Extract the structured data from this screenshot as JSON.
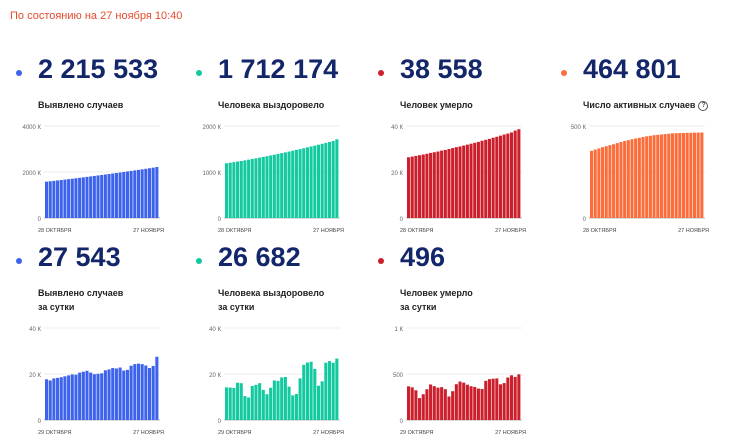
{
  "header": {
    "status": "По состоянию на 27 ноября 10:40"
  },
  "colors": {
    "blue": "#3d63ec",
    "teal": "#13c9a0",
    "red": "#cc1f2b",
    "orange": "#fb6d3b",
    "number": "#13266a",
    "status": "#e64a2e"
  },
  "cards": [
    {
      "value": "2 215 533",
      "caption1": "Выявлено случаев",
      "caption2": "",
      "info_icon": false,
      "color": "#3d63ec",
      "y_max_label": "4000 К",
      "y_mid_label": "2000 К",
      "y_zero_label": "0",
      "x_start_label": "28 ОКТЯБРЯ",
      "x_end_label": "27 НОЯБРЯ"
    },
    {
      "value": "1 712 174",
      "caption1": "Человека выздоровело",
      "caption2": "",
      "info_icon": false,
      "color": "#13c9a0",
      "y_max_label": "2000 К",
      "y_mid_label": "1000 К",
      "y_zero_label": "0",
      "x_start_label": "28 ОКТЯБРЯ",
      "x_end_label": "27 НОЯБРЯ"
    },
    {
      "value": "38 558",
      "caption1": "Человек умерло",
      "caption2": "",
      "info_icon": false,
      "color": "#cc1f2b",
      "y_max_label": "40 К",
      "y_mid_label": "20 К",
      "y_zero_label": "0",
      "x_start_label": "28 ОКТЯБРЯ",
      "x_end_label": "27 НОЯБРЯ"
    },
    {
      "value": "464 801",
      "caption1": "Число активных случаев",
      "caption2": "",
      "info_icon": true,
      "color": "#fb6d3b",
      "y_max_label": "500 К",
      "y_mid_label": "",
      "y_zero_label": "0",
      "x_start_label": "28 ОКТЯБРЯ",
      "x_end_label": "27 НОЯБРЯ"
    },
    {
      "value": "27 543",
      "caption1": "Выявлено случаев",
      "caption2": "за сутки",
      "info_icon": false,
      "color": "#3d63ec",
      "y_max_label": "40 К",
      "y_mid_label": "20 К",
      "y_zero_label": "0",
      "x_start_label": "29 ОКТЯБРЯ",
      "x_end_label": "27 НОЯБРЯ"
    },
    {
      "value": "26 682",
      "caption1": "Человека выздоровело",
      "caption2": "за сутки",
      "info_icon": false,
      "color": "#13c9a0",
      "y_max_label": "40 К",
      "y_mid_label": "20 К",
      "y_zero_label": "0",
      "x_start_label": "29 ОКТЯБРЯ",
      "x_end_label": "27 НОЯБРЯ"
    },
    {
      "value": "496",
      "caption1": "Человек умерло",
      "caption2": "за сутки",
      "info_icon": false,
      "color": "#cc1f2b",
      "y_max_label": "1 К",
      "y_mid_label": "500",
      "y_zero_label": "0",
      "x_start_label": "29 ОКТЯБРЯ",
      "x_end_label": "27 НОЯБРЯ"
    }
  ],
  "chart_data": [
    {
      "type": "bar",
      "ylim": [
        0,
        4000
      ],
      "values": [
        1580,
        1597,
        1615,
        1633,
        1651,
        1670,
        1689,
        1708,
        1728,
        1748,
        1768,
        1788,
        1808,
        1829,
        1850,
        1871,
        1892,
        1913,
        1935,
        1957,
        1979,
        2001,
        2024,
        2047,
        2070,
        2093,
        2116,
        2140,
        2164,
        2189,
        2215
      ]
    },
    {
      "type": "bar",
      "ylim": [
        0,
        2000
      ],
      "values": [
        1190,
        1202,
        1214,
        1227,
        1240,
        1254,
        1268,
        1283,
        1298,
        1313,
        1328,
        1344,
        1360,
        1376,
        1393,
        1410,
        1427,
        1444,
        1462,
        1480,
        1498,
        1517,
        1536,
        1555,
        1574,
        1593,
        1613,
        1633,
        1653,
        1673,
        1712
      ]
    },
    {
      "type": "bar",
      "ylim": [
        0,
        40
      ],
      "values": [
        26.4,
        26.7,
        27.0,
        27.3,
        27.6,
        27.9,
        28.3,
        28.6,
        28.9,
        29.3,
        29.6,
        30.0,
        30.4,
        30.8,
        31.1,
        31.5,
        31.9,
        32.3,
        32.7,
        33.1,
        33.6,
        34.0,
        34.4,
        34.9,
        35.3,
        35.8,
        36.3,
        36.7,
        37.2,
        38.0,
        38.6
      ]
    },
    {
      "type": "bar",
      "ylim": [
        0,
        500
      ],
      "values": [
        365,
        372,
        378,
        385,
        390,
        396,
        401,
        407,
        413,
        418,
        423,
        428,
        432,
        436,
        440,
        444,
        447,
        450,
        452,
        454,
        456,
        458,
        460,
        461,
        462,
        462,
        463,
        463,
        464,
        464,
        465
      ]
    },
    {
      "type": "bar",
      "ylim": [
        0,
        40
      ],
      "values": [
        17.7,
        17.2,
        18.1,
        18.3,
        18.6,
        19.0,
        19.4,
        19.8,
        19.7,
        20.6,
        21.0,
        21.4,
        20.6,
        19.9,
        20.1,
        20.3,
        21.6,
        22.0,
        22.6,
        22.4,
        22.8,
        21.5,
        21.8,
        23.6,
        24.3,
        24.5,
        24.3,
        23.7,
        22.6,
        23.5,
        27.5
      ]
    },
    {
      "type": "bar",
      "ylim": [
        0,
        40
      ],
      "values": [
        14.2,
        14.1,
        13.9,
        16.2,
        16.0,
        10.4,
        9.8,
        14.8,
        15.3,
        16.0,
        13.1,
        11.2,
        14.0,
        17.2,
        17.0,
        18.5,
        18.7,
        14.5,
        10.7,
        11.3,
        18.1,
        24.0,
        25.0,
        25.3,
        22.2,
        14.9,
        16.8,
        24.9,
        25.6,
        24.9,
        26.7
      ]
    },
    {
      "type": "bar",
      "ylim": [
        0,
        1000
      ],
      "values": [
        366,
        355,
        323,
        238,
        280,
        334,
        386,
        368,
        352,
        357,
        335,
        256,
        313,
        389,
        418,
        406,
        384,
        367,
        360,
        342,
        338,
        426,
        444,
        449,
        452,
        388,
        401,
        462,
        486,
        468,
        496
      ]
    }
  ]
}
